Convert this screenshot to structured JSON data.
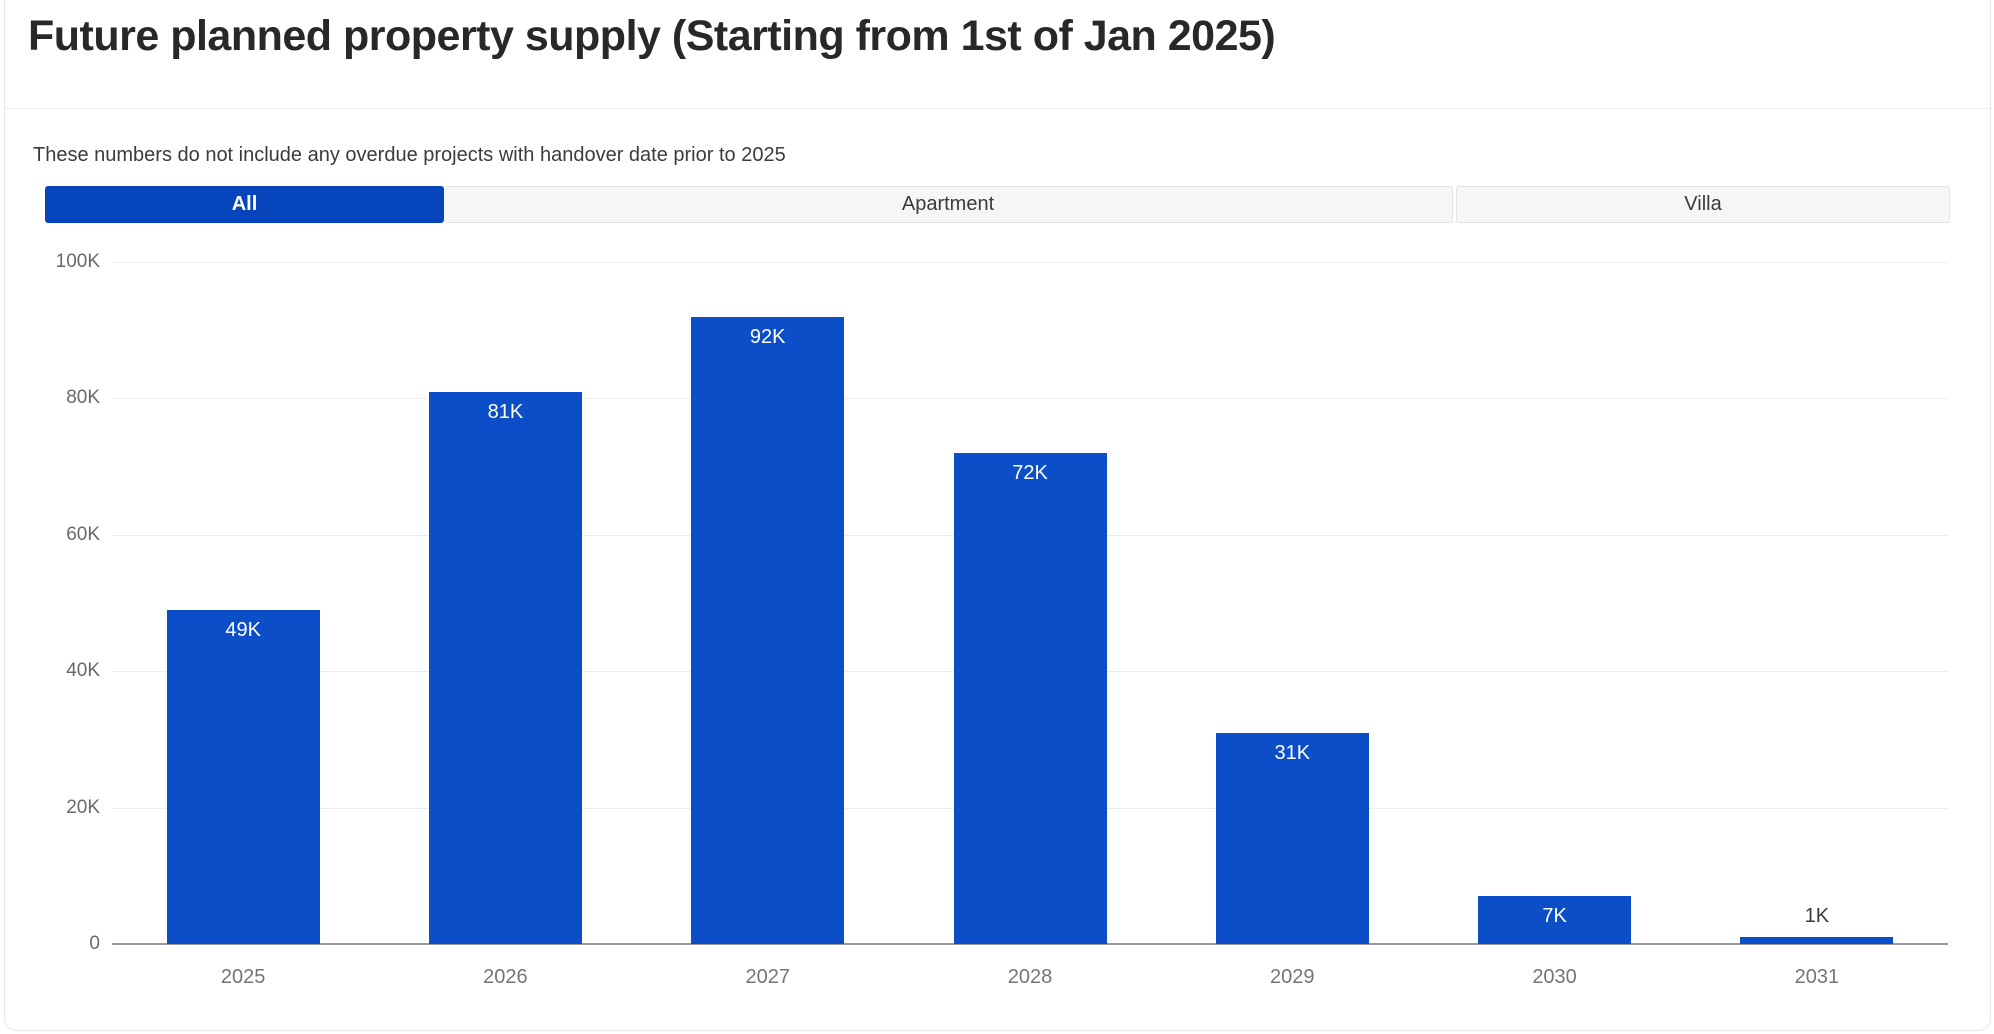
{
  "header": {
    "title": "Future planned property supply (Starting from 1st of Jan 2025)",
    "subtitle": "These numbers do not include any overdue projects with handover date prior to 2025"
  },
  "tabs": {
    "items": [
      {
        "label": "All",
        "active": true
      },
      {
        "label": "Apartment",
        "active": false
      },
      {
        "label": "Villa",
        "active": false
      }
    ]
  },
  "colors": {
    "accent_tab_blue": "#0745BD",
    "bar_blue": "#0B4EC8",
    "gridline": "#ededee",
    "axis_line": "#9a9a9a",
    "tick_text": "#67696b",
    "xlabel_text": "#757575",
    "title_text": "#282828"
  },
  "chart_data": {
    "type": "bar",
    "title": "Future planned property supply (Starting from 1st of Jan 2025)",
    "note": "These numbers do not include any overdue projects with handover date prior to 2025",
    "categories": [
      "2025",
      "2026",
      "2027",
      "2028",
      "2029",
      "2030",
      "2031"
    ],
    "values": [
      49000,
      81000,
      92000,
      72000,
      31000,
      7000,
      1000
    ],
    "value_labels": [
      "49K",
      "81K",
      "92K",
      "72K",
      "31K",
      "7K",
      "1K"
    ],
    "xlabel": "",
    "ylabel": "",
    "ylim": [
      0,
      100000
    ],
    "yticks": [
      {
        "value": 100000,
        "label": "100K"
      },
      {
        "value": 80000,
        "label": "80K"
      },
      {
        "value": 60000,
        "label": "60K"
      },
      {
        "value": 40000,
        "label": "40K"
      },
      {
        "value": 20000,
        "label": "20K"
      },
      {
        "value": 0,
        "label": "0"
      }
    ],
    "grid": true,
    "legend": null,
    "bar_color": "#0B4EC8"
  }
}
